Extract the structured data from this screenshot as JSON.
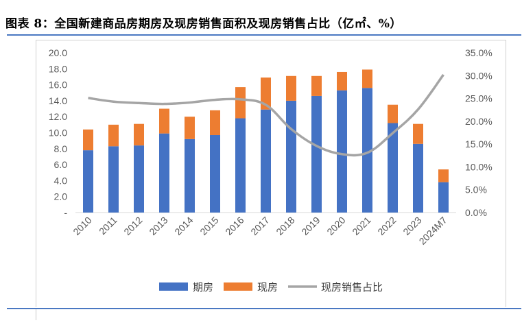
{
  "header": {
    "title": "图表 8：全国新建商品房期房及现房销售面积及现房销售占比（亿㎡、%）"
  },
  "chart_data": {
    "type": "bar",
    "stacked": true,
    "title": "图表 8：全国新建商品房期房及现房销售面积及现房销售占比（亿㎡、%）",
    "categories": [
      "2010",
      "2011",
      "2012",
      "2013",
      "2014",
      "2015",
      "2016",
      "2017",
      "2018",
      "2019",
      "2020",
      "2021",
      "2022",
      "2023",
      "2024M7"
    ],
    "series": [
      {
        "name": "期房",
        "type": "bar",
        "axis": "left",
        "color": "#4472c4",
        "values": [
          7.8,
          8.3,
          8.4,
          9.9,
          9.2,
          9.7,
          11.8,
          12.9,
          14.0,
          14.6,
          15.3,
          15.6,
          11.2,
          8.6,
          3.8
        ]
      },
      {
        "name": "现房",
        "type": "bar",
        "axis": "left",
        "color": "#ed7d31",
        "values": [
          2.6,
          2.7,
          2.7,
          3.1,
          2.8,
          3.1,
          3.9,
          4.0,
          3.1,
          2.5,
          2.3,
          2.3,
          2.3,
          2.5,
          1.6
        ]
      },
      {
        "name": "现房销售占比",
        "type": "line",
        "axis": "right",
        "color": "#a5a5a5",
        "values": [
          25.1,
          24.3,
          24.0,
          23.8,
          24.1,
          24.7,
          24.8,
          23.6,
          18.3,
          14.6,
          12.8,
          13.1,
          17.4,
          22.6,
          30.2
        ]
      }
    ],
    "y_left": {
      "range": [
        0,
        20
      ],
      "ticks": [
        "-",
        "2.0",
        "4.0",
        "6.0",
        "8.0",
        "10.0",
        "12.0",
        "14.0",
        "16.0",
        "18.0",
        "20.0"
      ]
    },
    "y_right": {
      "range": [
        0,
        35
      ],
      "ticks": [
        "0.0%",
        "5.0%",
        "10.0%",
        "15.0%",
        "20.0%",
        "25.0%",
        "30.0%",
        "35.0%"
      ]
    },
    "grid": false,
    "legend": {
      "position": "bottom",
      "items": [
        "期房",
        "现房",
        "现房销售占比"
      ]
    }
  }
}
